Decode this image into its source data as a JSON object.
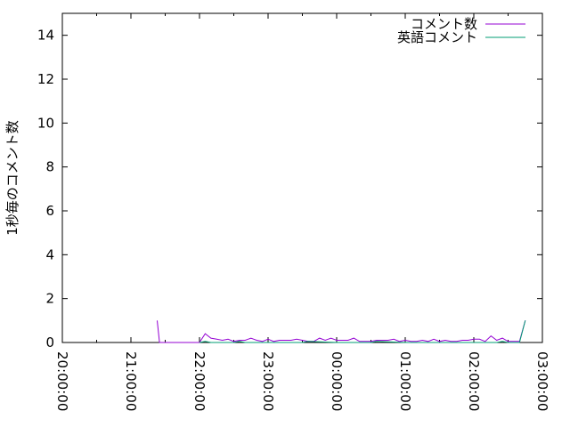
{
  "chart_data": {
    "type": "line",
    "title": "",
    "xlabel": "",
    "ylabel": "1秒毎のコメント数",
    "xlim": [
      "20:00:00",
      "03:00:00"
    ],
    "ylim": [
      0,
      15
    ],
    "xticks": [
      "20:00:00",
      "21:00:00",
      "22:00:00",
      "23:00:00",
      "00:00:00",
      "01:00:00",
      "02:00:00",
      "03:00:00"
    ],
    "yticks": [
      "0",
      "2",
      "4",
      "6",
      "8",
      "10",
      "12",
      "14"
    ],
    "grid": false,
    "legend": "top-right",
    "series": [
      {
        "name": "コメント数",
        "color": "#9400d3",
        "x": [
          "21:23",
          "21:25",
          "22:00",
          "22:05",
          "22:10",
          "22:15",
          "22:20",
          "22:25",
          "22:30",
          "22:35",
          "22:40",
          "22:45",
          "22:50",
          "22:55",
          "23:00",
          "23:05",
          "23:10",
          "23:15",
          "23:20",
          "23:25",
          "23:30",
          "23:35",
          "23:40",
          "23:45",
          "23:50",
          "23:55",
          "00:00",
          "00:05",
          "00:10",
          "00:15",
          "00:20",
          "00:25",
          "00:30",
          "00:35",
          "00:40",
          "00:45",
          "00:50",
          "00:55",
          "01:00",
          "01:05",
          "01:10",
          "01:15",
          "01:20",
          "01:25",
          "01:30",
          "01:35",
          "01:40",
          "01:45",
          "01:50",
          "01:55",
          "02:00",
          "02:05",
          "02:10",
          "02:15",
          "02:20",
          "02:25",
          "02:30",
          "02:35",
          "02:40",
          "02:45"
        ],
        "y": [
          1.0,
          0,
          0,
          0.4,
          0.2,
          0.15,
          0.1,
          0.15,
          0.05,
          0.1,
          0.1,
          0.2,
          0.1,
          0.05,
          0.15,
          0.05,
          0.1,
          0.1,
          0.1,
          0.15,
          0.1,
          0.05,
          0.05,
          0.2,
          0.1,
          0.2,
          0.1,
          0.1,
          0.1,
          0.2,
          0.05,
          0.05,
          0.05,
          0.1,
          0.1,
          0.1,
          0.15,
          0.05,
          0.1,
          0.05,
          0.05,
          0.1,
          0.05,
          0.15,
          0.05,
          0.1,
          0.05,
          0.05,
          0.1,
          0.1,
          0.15,
          0.15,
          0.05,
          0.3,
          0.1,
          0.2,
          0.05,
          0.05,
          0.05,
          1.0
        ]
      },
      {
        "name": "英語コメント",
        "color": "#009e73",
        "x": [
          "22:00",
          "22:05",
          "22:10",
          "22:30",
          "22:35",
          "22:40",
          "23:00",
          "23:30",
          "23:35",
          "00:00",
          "00:30",
          "00:35",
          "01:00",
          "01:30",
          "02:00",
          "02:20",
          "02:25",
          "02:30",
          "02:40",
          "02:45"
        ],
        "y": [
          0,
          0.05,
          0,
          0,
          0.05,
          0,
          0,
          0,
          0.05,
          0,
          0,
          0.05,
          0,
          0,
          0,
          0,
          0.05,
          0,
          0,
          1.0
        ]
      }
    ]
  }
}
